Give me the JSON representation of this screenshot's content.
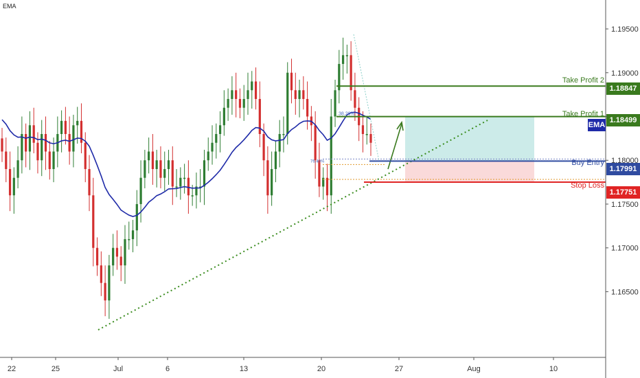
{
  "indicator": "EMA",
  "colors": {
    "up": "#2E7D32",
    "down": "#D32F2F",
    "ema": "#1E2AA8",
    "take_profit": "#3A7A1E",
    "buy_entry": "#2F4BA0",
    "stop_loss": "#E02424",
    "trendline": "#3A8C1E",
    "profit_zone": "#BFE6E4",
    "loss_zone": "#F9D3D3"
  },
  "levels": [
    {
      "id": "tp2",
      "label": "Take Profit 2",
      "price": "1.18847",
      "color": "#3A7A1E"
    },
    {
      "id": "tp1",
      "label": "Take Profit 1",
      "price": "1.18499",
      "color": "#3A7A1E"
    },
    {
      "id": "entry",
      "label": "Buy Entry",
      "price": "1.17991",
      "color": "#2F4BA0"
    },
    {
      "id": "sl",
      "label": "Stop Loss",
      "price": "1.17751",
      "color": "#E02424"
    }
  ],
  "ema_tag": "EMA",
  "fib_labels": [
    "38.20%",
    "76.40%"
  ],
  "chart_data": {
    "type": "candlestick",
    "x_ticks": [
      "22",
      "25",
      "Jul",
      "6",
      "13",
      "20",
      "27",
      "Aug",
      "10"
    ],
    "y_ticks": [
      "1.16500",
      "1.17000",
      "1.17500",
      "1.18000",
      "1.18500",
      "1.19000",
      "1.19500"
    ],
    "ylim": [
      1.1575,
      1.1983
    ],
    "series": [
      {
        "name": "EMA",
        "type": "line"
      }
    ],
    "closes": [
      1.181,
      1.179,
      1.176,
      1.178,
      1.18,
      1.183,
      1.181,
      1.184,
      1.182,
      1.18,
      1.183,
      1.181,
      1.179,
      1.181,
      1.183,
      1.1845,
      1.183,
      1.181,
      1.184,
      1.1845,
      1.182,
      1.179,
      1.176,
      1.17,
      1.168,
      1.166,
      1.164,
      1.168,
      1.17,
      1.169,
      1.168,
      1.171,
      1.171,
      1.172,
      1.175,
      1.178,
      1.18,
      1.181,
      1.179,
      1.18,
      1.178,
      1.179,
      1.18,
      1.177,
      1.177,
      1.178,
      1.178,
      1.176,
      1.176,
      1.177,
      1.177,
      1.18,
      1.181,
      1.182,
      1.183,
      1.184,
      1.186,
      1.187,
      1.188,
      1.187,
      1.186,
      1.187,
      1.188,
      1.189,
      1.187,
      1.183,
      1.18,
      1.176,
      1.179,
      1.181,
      1.183,
      1.183,
      1.19,
      1.188,
      1.187,
      1.188,
      1.187,
      1.185,
      1.184,
      1.18,
      1.177,
      1.178,
      1.176,
      1.185,
      1.188,
      1.191,
      1.192,
      1.192,
      1.188,
      1.186,
      1.184,
      1.183,
      1.183,
      1.182
    ]
  }
}
